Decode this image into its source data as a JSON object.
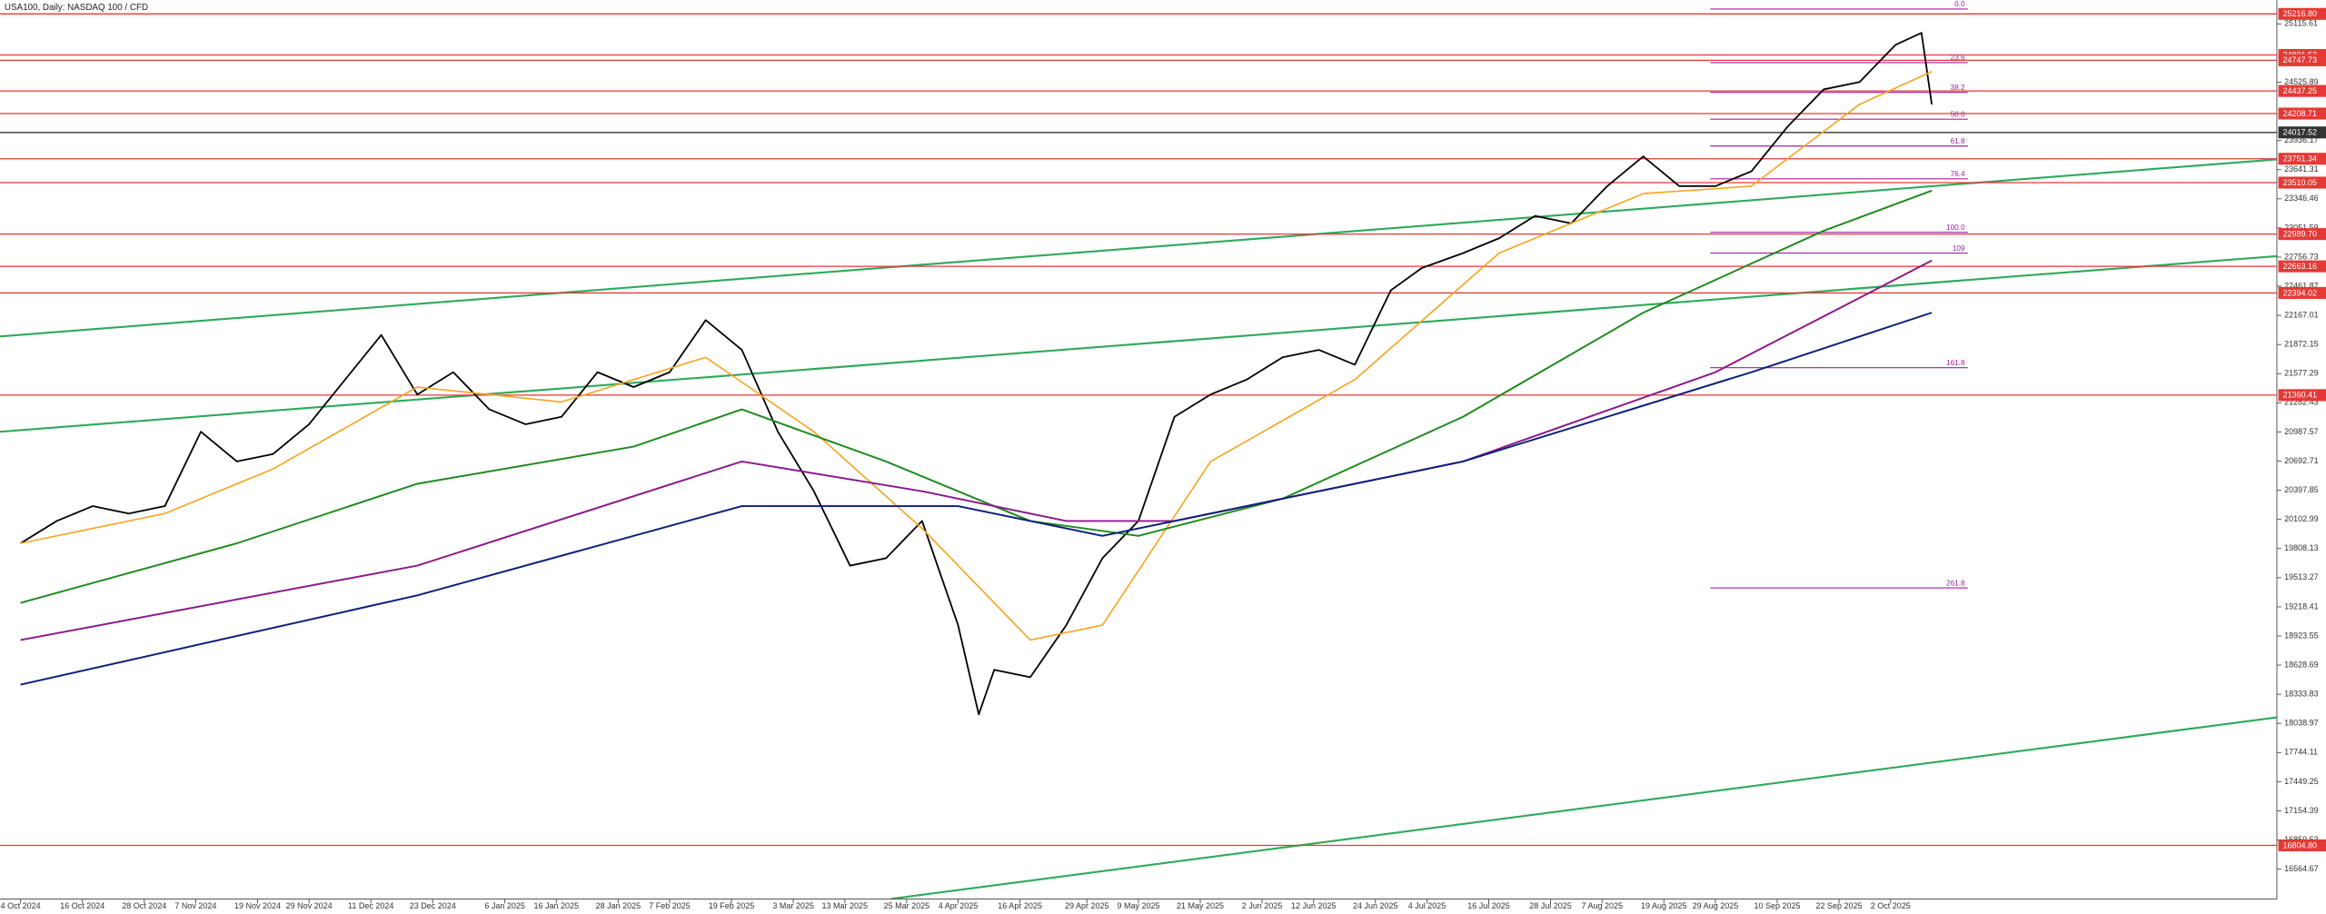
{
  "chart_data": {
    "type": "line",
    "title": "USA100, Daily: NASDAQ 100 / CFD",
    "xlim": [
      "2024-09-30",
      "2025-12-16"
    ],
    "ylim": [
      16263,
      25356
    ],
    "xticks": [
      {
        "value": "2024-10-04",
        "label": "4 Oct 2024"
      },
      {
        "value": "2024-10-16",
        "label": "16 Oct 2024"
      },
      {
        "value": "2024-10-28",
        "label": "28 Oct 2024"
      },
      {
        "value": "2024-11-07",
        "label": "7 Nov 2024"
      },
      {
        "value": "2024-11-19",
        "label": "19 Nov 2024"
      },
      {
        "value": "2024-11-29",
        "label": "29 Nov 2024"
      },
      {
        "value": "2024-12-11",
        "label": "11 Dec 2024"
      },
      {
        "value": "2024-12-23",
        "label": "23 Dec 2024"
      },
      {
        "value": "2025-01-06",
        "label": "6 Jan 2025"
      },
      {
        "value": "2025-01-16",
        "label": "16 Jan 2025"
      },
      {
        "value": "2025-01-28",
        "label": "28 Jan 2025"
      },
      {
        "value": "2025-02-07",
        "label": "7 Feb 2025"
      },
      {
        "value": "2025-02-19",
        "label": "19 Feb 2025"
      },
      {
        "value": "2025-03-03",
        "label": "3 Mar 2025"
      },
      {
        "value": "2025-03-13",
        "label": "13 Mar 2025"
      },
      {
        "value": "2025-03-25",
        "label": "25 Mar 2025"
      },
      {
        "value": "2025-04-04",
        "label": "4 Apr 2025"
      },
      {
        "value": "2025-04-16",
        "label": "16 Apr 2025"
      },
      {
        "value": "2025-04-29",
        "label": "29 Apr 2025"
      },
      {
        "value": "2025-05-09",
        "label": "9 May 2025"
      },
      {
        "value": "2025-05-21",
        "label": "21 May 2025"
      },
      {
        "value": "2025-06-02",
        "label": "2 Jun 2025"
      },
      {
        "value": "2025-06-12",
        "label": "12 Jun 2025"
      },
      {
        "value": "2025-06-24",
        "label": "24 Jun 2025"
      },
      {
        "value": "2025-07-04",
        "label": "4 Jul 2025"
      },
      {
        "value": "2025-07-16",
        "label": "16 Jul 2025"
      },
      {
        "value": "2025-07-28",
        "label": "28 Jul 2025"
      },
      {
        "value": "2025-08-07",
        "label": "7 Aug 2025"
      },
      {
        "value": "2025-08-19",
        "label": "19 Aug 2025"
      },
      {
        "value": "2025-08-29",
        "label": "29 Aug 2025"
      },
      {
        "value": "2025-09-10",
        "label": "10 Sep 2025"
      },
      {
        "value": "2025-09-22",
        "label": "22 Sep 2025"
      },
      {
        "value": "2025-10-02",
        "label": "2 Oct 2025"
      }
    ],
    "yticks": [
      25115.61,
      24525.89,
      23936.17,
      23641.31,
      23346.46,
      23051.59,
      22756.73,
      22461.87,
      22167.01,
      21872.15,
      21577.29,
      21282.43,
      20987.57,
      20692.71,
      20397.85,
      20102.99,
      19808.13,
      19513.27,
      19218.41,
      18923.55,
      18628.69,
      18333.83,
      18038.97,
      17744.11,
      17449.25,
      17154.39,
      16859.53,
      16564.67
    ],
    "series": [
      {
        "color": "#000000",
        "width": 1.1,
        "x": [
          "2024-10-04",
          "2024-10-11",
          "2024-10-18",
          "2024-10-25",
          "2024-11-01",
          "2024-11-08",
          "2024-11-15",
          "2024-11-22",
          "2024-11-29",
          "2024-12-06",
          "2024-12-13",
          "2024-12-20",
          "2024-12-27",
          "2025-01-03",
          "2025-01-10",
          "2025-01-17",
          "2025-01-24",
          "2025-01-31",
          "2025-02-07",
          "2025-02-14",
          "2025-02-21",
          "2025-02-28",
          "2025-03-07",
          "2025-03-14",
          "2025-03-21",
          "2025-03-28",
          "2025-04-04",
          "2025-04-08",
          "2025-04-11",
          "2025-04-18",
          "2025-04-25",
          "2025-05-02",
          "2025-05-09",
          "2025-05-16",
          "2025-05-23",
          "2025-05-30",
          "2025-06-06",
          "2025-06-13",
          "2025-06-20",
          "2025-06-27",
          "2025-07-03",
          "2025-07-11",
          "2025-07-18",
          "2025-07-25",
          "2025-08-01",
          "2025-08-08",
          "2025-08-15",
          "2025-08-22",
          "2025-08-29",
          "2025-09-05",
          "2025-09-12",
          "2025-09-19",
          "2025-09-26",
          "2025-10-03",
          "2025-10-08",
          "2025-10-10"
        ],
        "values": [
          19861,
          20087,
          20238,
          20162,
          20238,
          20990,
          20689,
          20764,
          21065,
          21517,
          21969,
          21367,
          21592,
          21216,
          21065,
          21141,
          21592,
          21442,
          21592,
          22119,
          21818,
          20990,
          20388,
          19635,
          19711,
          20087,
          19033,
          18130,
          18582,
          18506,
          19033,
          19711,
          20087,
          21141,
          21367,
          21517,
          21743,
          21818,
          21668,
          22420,
          22646,
          22797,
          22947,
          23173,
          23098,
          23474,
          23775,
          23474,
          23474,
          23625,
          24076,
          24452,
          24528,
          24904,
          25025,
          24302
        ]
      },
      {
        "color": "#f5a623",
        "width": 1,
        "x": [
          "2024-10-04",
          "2024-11-01",
          "2024-11-22",
          "2024-12-20",
          "2025-01-17",
          "2025-02-14",
          "2025-03-07",
          "2025-03-28",
          "2025-04-18",
          "2025-05-02",
          "2025-05-23",
          "2025-06-20",
          "2025-07-18",
          "2025-08-15",
          "2025-09-05",
          "2025-09-26",
          "2025-10-10"
        ],
        "values": [
          19861,
          20162,
          20614,
          21442,
          21291,
          21743,
          20990,
          20012,
          18883,
          19033,
          20689,
          21517,
          22797,
          23399,
          23474,
          24302,
          24633
        ]
      },
      {
        "color": "#1e8a1e",
        "width": 1.2,
        "x": [
          "2024-10-04",
          "2024-11-15",
          "2024-12-20",
          "2025-01-31",
          "2025-02-21",
          "2025-03-21",
          "2025-04-18",
          "2025-05-09",
          "2025-06-06",
          "2025-07-11",
          "2025-08-15",
          "2025-09-19",
          "2025-10-10"
        ],
        "values": [
          19259,
          19861,
          20463,
          20840,
          21216,
          20689,
          20087,
          19936,
          20313,
          21141,
          22195,
          23022,
          23429
        ]
      },
      {
        "color": "#8b1a8b",
        "width": 1.2,
        "x": [
          "2024-10-04",
          "2024-12-20",
          "2025-02-21",
          "2025-03-28",
          "2025-04-25",
          "2025-05-16",
          "2025-07-11",
          "2025-08-29",
          "2025-10-10"
        ],
        "values": [
          18883,
          19635,
          20689,
          20388,
          20087,
          20087,
          20689,
          21592,
          22721
        ]
      },
      {
        "color": "#0a1f7a",
        "width": 1.2,
        "x": [
          "2024-10-04",
          "2024-12-20",
          "2025-02-21",
          "2025-04-04",
          "2025-05-02",
          "2025-07-11",
          "2025-09-05",
          "2025-10-10"
        ],
        "values": [
          18431,
          19334,
          20238,
          20238,
          19936,
          20689,
          21592,
          22195
        ]
      }
    ],
    "levels": [
      {
        "value": 25216.8,
        "label": "25216.80",
        "color": "#e53935"
      },
      {
        "value": 24801.53,
        "label": "24801.53",
        "color": "#e53935"
      },
      {
        "value": 24747.73,
        "label": "24747.73",
        "color": "#e53935"
      },
      {
        "value": 24437.25,
        "label": "24437.25",
        "color": "#e53935"
      },
      {
        "value": 24208.71,
        "label": "24208.71",
        "color": "#e53935"
      },
      {
        "value": 24017.52,
        "label": "24017.52",
        "color": "#333333"
      },
      {
        "value": 23751.34,
        "label": "23751.34",
        "color": "#e53935"
      },
      {
        "value": 23510.05,
        "label": "23510.05",
        "color": "#e53935"
      },
      {
        "value": 22989.7,
        "label": "22989.70",
        "color": "#e53935"
      },
      {
        "value": 22663.16,
        "label": "22663.16",
        "color": "#e53935"
      },
      {
        "value": 22394.02,
        "label": "22394.02",
        "color": "#e53935"
      },
      {
        "value": 21360.41,
        "label": "21360.41",
        "color": "#e53935"
      },
      {
        "value": 16804.8,
        "label": "16804.80",
        "color": "#e53935"
      }
    ],
    "fib": {
      "start": "2025-08-28",
      "end": "2025-10-17",
      "color": "#a020a0",
      "levels": [
        {
          "value": 25266,
          "label": "0.0"
        },
        {
          "value": 24724,
          "label": "23.6"
        },
        {
          "value": 24423,
          "label": "38.2"
        },
        {
          "value": 24152,
          "label": "50.0"
        },
        {
          "value": 23880,
          "label": "61.8"
        },
        {
          "value": 23549,
          "label": "76.4"
        },
        {
          "value": 23007,
          "label": "100.0"
        },
        {
          "value": 22797,
          "label": "109"
        },
        {
          "value": 21638,
          "label": "161.8"
        },
        {
          "value": 19410,
          "label": "261.8"
        }
      ]
    },
    "trend_lines": [
      {
        "x": [
          "2024-09-30",
          "2025-12-16"
        ],
        "values": [
          21954,
          23745
        ],
        "color": "#2eaa5a"
      },
      {
        "x": [
          "2024-09-30",
          "2025-12-16"
        ],
        "values": [
          20990,
          22766
        ],
        "color": "#2eaa5a"
      },
      {
        "x": [
          "2025-03-22",
          "2025-12-16"
        ],
        "values": [
          16264,
          18100
        ],
        "color": "#2eaa5a"
      }
    ]
  }
}
